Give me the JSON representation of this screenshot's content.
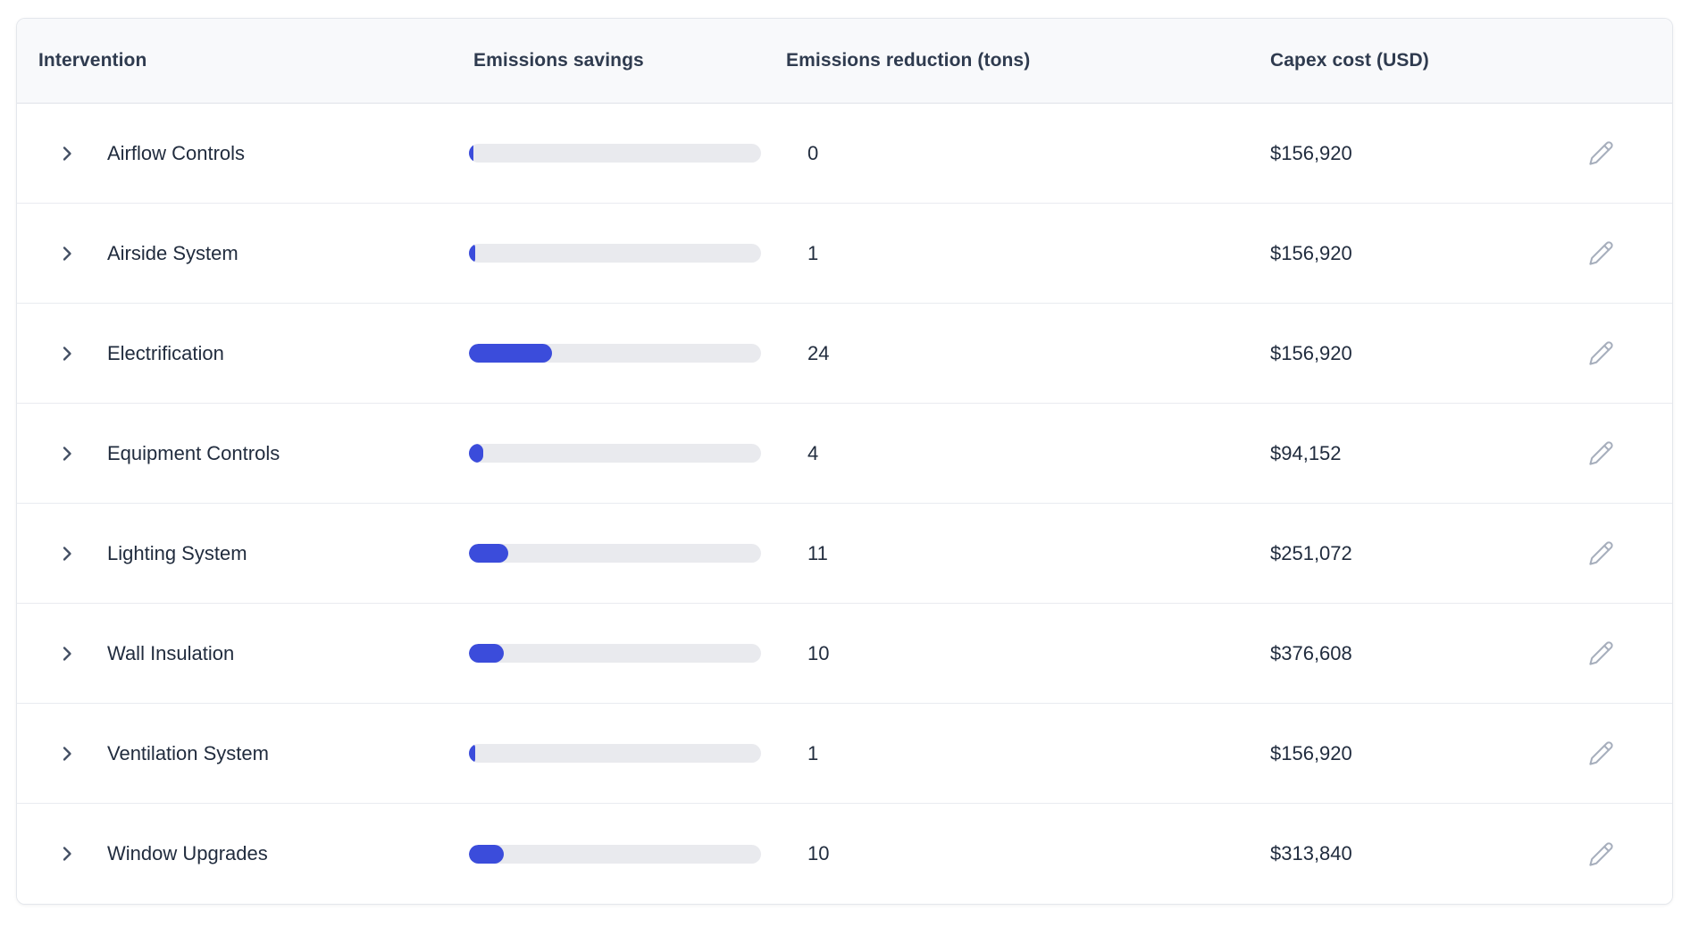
{
  "colors": {
    "bar_fill": "#3b4cdb",
    "bar_track": "#e9eaee",
    "header_bg": "#f8f9fb",
    "card_border": "#e4e7ec",
    "row_divider": "#e9ebf0",
    "header_text": "#2f3b4f",
    "body_text": "#212c3e",
    "edit_icon": "#a6aebc"
  },
  "icons": {
    "expand": "chevron-right",
    "edit": "pencil"
  },
  "table": {
    "columns": [
      "Intervention",
      "Emissions savings",
      "Emissions reduction (tons)",
      "Capex cost (USD)"
    ],
    "bar_percent_max": 100,
    "rows": [
      {
        "name": "Airflow Controls",
        "reduction_tons": "0",
        "capex": "$156,920",
        "bar_percent": 1.5
      },
      {
        "name": "Airside System",
        "reduction_tons": "1",
        "capex": "$156,920",
        "bar_percent": 2
      },
      {
        "name": "Electrification",
        "reduction_tons": "24",
        "capex": "$156,920",
        "bar_percent": 28.5
      },
      {
        "name": "Equipment Controls",
        "reduction_tons": "4",
        "capex": "$94,152",
        "bar_percent": 5
      },
      {
        "name": "Lighting System",
        "reduction_tons": "11",
        "capex": "$251,072",
        "bar_percent": 13.5
      },
      {
        "name": "Wall Insulation",
        "reduction_tons": "10",
        "capex": "$376,608",
        "bar_percent": 12
      },
      {
        "name": "Ventilation System",
        "reduction_tons": "1",
        "capex": "$156,920",
        "bar_percent": 2
      },
      {
        "name": "Window Upgrades",
        "reduction_tons": "10",
        "capex": "$313,840",
        "bar_percent": 12
      }
    ]
  }
}
